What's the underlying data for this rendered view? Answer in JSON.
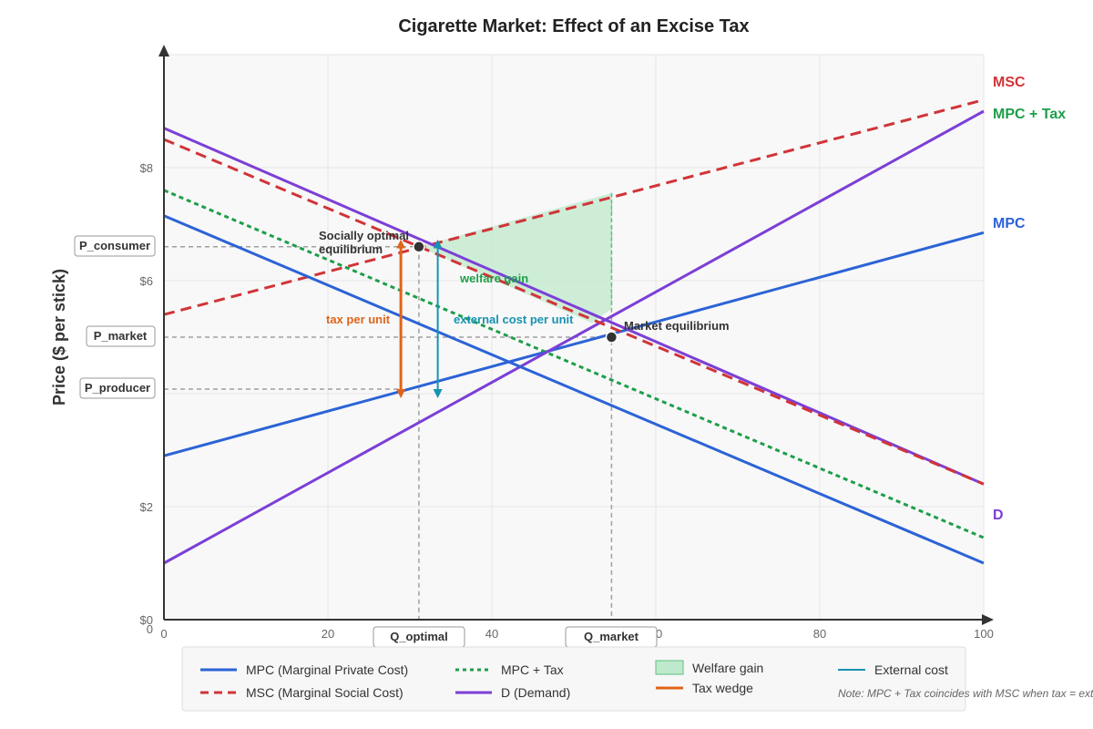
{
  "chart_data": {
    "type": "line",
    "title": "Cigarette Market: Effect of an Excise Tax",
    "xlabel": "",
    "ylabel": "Price ($ per stick)",
    "xlim": [
      0,
      100
    ],
    "ylim": [
      0,
      10
    ],
    "x_ticks": [
      "0",
      "20",
      "40",
      "60",
      "80",
      "100"
    ],
    "y_ticks": [
      "$0",
      "$2",
      "$6",
      "$8"
    ],
    "grid": true,
    "series": [
      {
        "name": "MPC",
        "legend": "MPC (Marginal Private Cost)",
        "x": [
          0,
          100
        ],
        "y": [
          2.9,
          6.85
        ],
        "color": "#2c63d6",
        "dash": "solid"
      },
      {
        "name": "MSC",
        "legend": "MSC (Marginal Social Cost)",
        "x": [
          0,
          100
        ],
        "y": [
          5.4,
          9.2
        ],
        "color": "#d13438",
        "dash": "dashed"
      },
      {
        "name": "MPC + Tax",
        "legend": "MPC + Tax",
        "x": [
          0,
          100
        ],
        "y": [
          7.6,
          1.45
        ],
        "color": "#1e9e4a",
        "dash": "dotted"
      },
      {
        "name": "D",
        "legend": "D (Demand)",
        "x": [
          0,
          100
        ],
        "y": [
          1.0,
          9.0
        ],
        "color": "#7c3fd6",
        "dash": "solid"
      },
      {
        "name": "",
        "x": [
          0,
          100
        ],
        "y": [
          7.15,
          1.0
        ],
        "color": "#2c63d6",
        "dash": "solid"
      },
      {
        "name": "",
        "x": [
          0,
          100
        ],
        "y": [
          8.7,
          2.4
        ],
        "color": "#7c3fd6",
        "dash": "solid"
      },
      {
        "name": "",
        "x": [
          0,
          100
        ],
        "y": [
          8.5,
          2.4
        ],
        "color": "#d13438",
        "dash": "dashed"
      }
    ],
    "welfare_gain_polygon": [
      [
        31.1,
        6.6
      ],
      [
        54.6,
        7.55
      ],
      [
        54.6,
        5.5
      ],
      [
        52.2,
        5.25
      ]
    ],
    "points": [
      {
        "label": "Socially optimal equilibrium",
        "x": 31.1,
        "y": 6.6
      },
      {
        "label": "Market equilibrium",
        "x": 54.6,
        "y": 5.0
      }
    ],
    "reference_levels": {
      "P_consumer": 6.6,
      "P_market": 5.0,
      "P_producer": 4.08,
      "Q_optimal": 31.1,
      "Q_market": 54.6
    },
    "tax_wedge": {
      "x": 28.9,
      "y_from": 4.0,
      "y_to": 6.65
    },
    "external_cost_arrow": {
      "x": 33.4,
      "y_from": 4.0,
      "y_to": 6.65
    },
    "annotations": {
      "socially_optimal_line1": "Socially optimal",
      "socially_optimal_line2": "equilibrium",
      "market_equilibrium": "Market equilibrium",
      "welfare_gain": "welfare gain",
      "tax_per_unit": "tax per unit",
      "external_cost_per_unit": "external cost per unit"
    },
    "y_level_labels": {
      "p_consumer": "P_consumer",
      "p_market": "P_market",
      "p_producer": "P_producer"
    },
    "x_level_labels": {
      "q_optimal": "Q_optimal",
      "q_market": "Q_market"
    },
    "edge_labels": {
      "msc": "MSC",
      "mpc_tax": "MPC + Tax",
      "mpc": "MPC",
      "d": "D"
    },
    "legend": {
      "items": [
        {
          "label": "MPC (Marginal Private Cost)"
        },
        {
          "label": "MSC (Marginal Social Cost)"
        },
        {
          "label": "MPC + Tax"
        },
        {
          "label": "D (Demand)"
        },
        {
          "label": "Welfare gain"
        },
        {
          "label": "Tax wedge"
        },
        {
          "label": "External cost"
        }
      ],
      "note": "Note: MPC + Tax coincides with MSC when tax = ext"
    },
    "colors": {
      "mpc": "#2c63d6",
      "msc": "#d13438",
      "mpc_tax": "#1e9e4a",
      "demand": "#7c3fd6",
      "welfare_fill": "#bfe9cc",
      "tax": "#e0641a",
      "external": "#1693b0"
    }
  }
}
